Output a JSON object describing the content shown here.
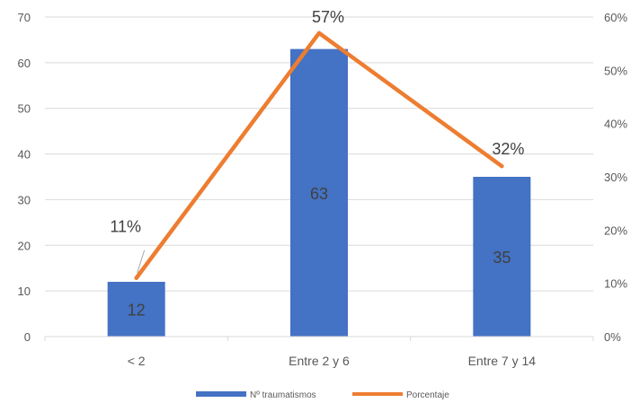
{
  "chart_data": {
    "type": "bar",
    "categories": [
      "< 2",
      "Entre 2 y 6",
      "Entre 7 y 14"
    ],
    "series": [
      {
        "name": "Nº traumatismos",
        "type": "bar",
        "axis": "left",
        "values": [
          12,
          63,
          35
        ],
        "data_labels": [
          "12",
          "63",
          "35"
        ],
        "color": "#4472C4"
      },
      {
        "name": "Porcentaje",
        "type": "line",
        "axis": "right",
        "values": [
          0.11,
          0.57,
          0.32
        ],
        "data_labels": [
          "11%",
          "57%",
          "32%"
        ],
        "color": "#ED7D31"
      }
    ],
    "y_left": {
      "ylim": [
        0,
        70
      ],
      "ticks": [
        "0",
        "10",
        "20",
        "30",
        "40",
        "50",
        "60",
        "70"
      ]
    },
    "y_right": {
      "ylim": [
        0,
        0.6
      ],
      "ticks": [
        "0%",
        "10%",
        "20%",
        "30%",
        "40%",
        "50%",
        "60%"
      ]
    },
    "grid": true,
    "legend": "bottom"
  }
}
